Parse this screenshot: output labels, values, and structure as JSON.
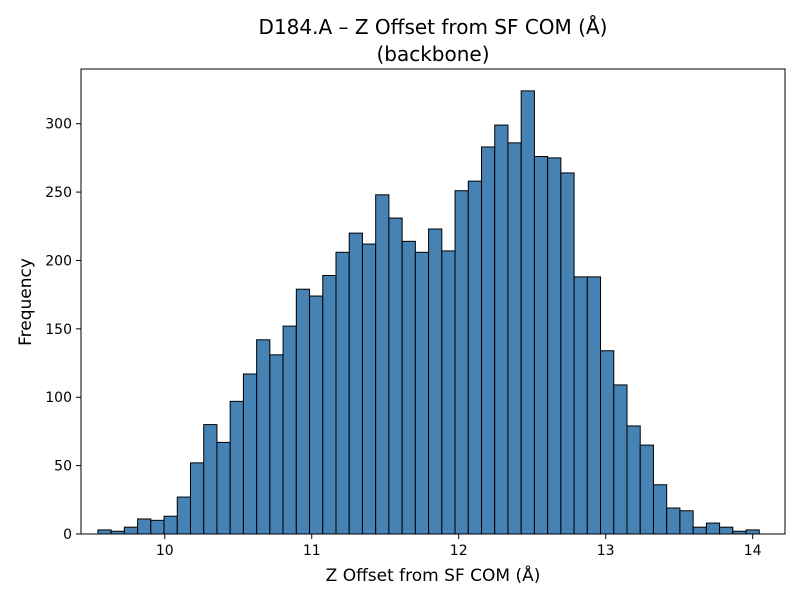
{
  "chart_data": {
    "type": "bar",
    "title": "D184.A – Z Offset from SF COM (Å)",
    "subtitle": "(backbone)",
    "xlabel": "Z Offset from SF COM (Å)",
    "ylabel": "Frequency",
    "xlim": [
      9.43,
      14.22
    ],
    "ylim": [
      0,
      340
    ],
    "xticks": [
      "10",
      "11",
      "12",
      "13",
      "14"
    ],
    "yticks": [
      "0",
      "50",
      "100",
      "150",
      "200",
      "250",
      "300"
    ],
    "grid": false,
    "bar_color": "#4682b4",
    "edge_color": "#000000",
    "bin_edges": [
      9.545,
      9.635,
      9.725,
      9.815,
      9.905,
      9.995,
      10.085,
      10.175,
      10.265,
      10.355,
      10.445,
      10.535,
      10.625,
      10.715,
      10.805,
      10.895,
      10.985,
      11.075,
      11.165,
      11.255,
      11.345,
      11.435,
      11.525,
      11.615,
      11.705,
      11.795,
      11.885,
      11.975,
      12.065,
      12.155,
      12.245,
      12.335,
      12.425,
      12.515,
      12.605,
      12.695,
      12.785,
      12.875,
      12.965,
      13.055,
      13.145,
      13.235,
      13.325,
      13.415,
      13.505,
      13.595,
      13.685,
      13.775,
      13.865,
      13.955,
      14.045
    ],
    "values": [
      3,
      2,
      5,
      11,
      10,
      13,
      27,
      52,
      80,
      67,
      97,
      117,
      142,
      131,
      152,
      179,
      174,
      189,
      206,
      220,
      212,
      248,
      231,
      214,
      206,
      223,
      207,
      251,
      258,
      283,
      299,
      286,
      324,
      276,
      275,
      264,
      188,
      188,
      134,
      109,
      79,
      65,
      36,
      19,
      17,
      5,
      8,
      5,
      2,
      3
    ]
  }
}
